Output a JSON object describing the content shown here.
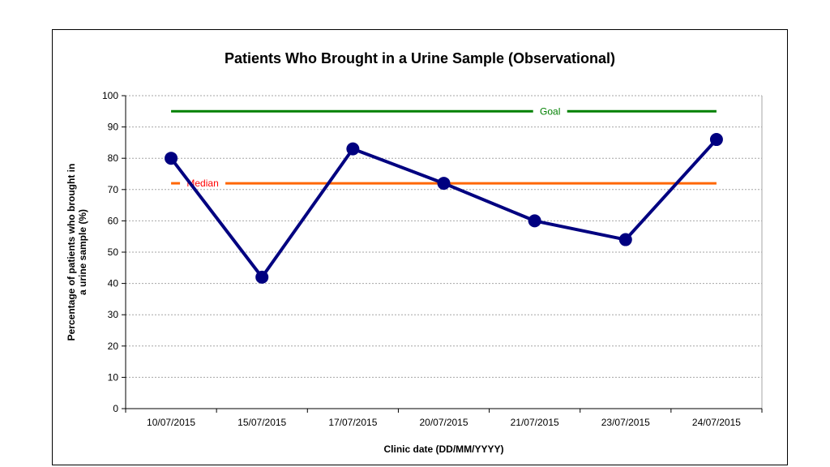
{
  "chart_data": {
    "type": "line",
    "title": "Patients Who Brought in a Urine Sample (Observational)",
    "xlabel": "Clinic date (DD/MM/YYYY)",
    "ylabel_lines": [
      "Percentage of patients who brought in",
      "a urine sample (%)"
    ],
    "categories": [
      "10/07/2015",
      "15/07/2015",
      "17/07/2015",
      "20/07/2015",
      "21/07/2015",
      "23/07/2015",
      "24/07/2015"
    ],
    "series": [
      {
        "values": [
          80,
          42,
          83,
          72,
          60,
          54,
          86
        ],
        "color": "#000080"
      }
    ],
    "reference_lines": [
      {
        "name": "Goal",
        "value": 95,
        "color": "#008000",
        "label_color": "#008000",
        "label_pos": "right"
      },
      {
        "name": "Median",
        "value": 72,
        "color": "#FF6600",
        "label_color": "#FF0000",
        "label_pos": "left"
      }
    ],
    "ylim": [
      0,
      100
    ],
    "yticks": [
      0,
      10,
      20,
      30,
      40,
      50,
      60,
      70,
      80,
      90,
      100
    ],
    "grid": true
  }
}
